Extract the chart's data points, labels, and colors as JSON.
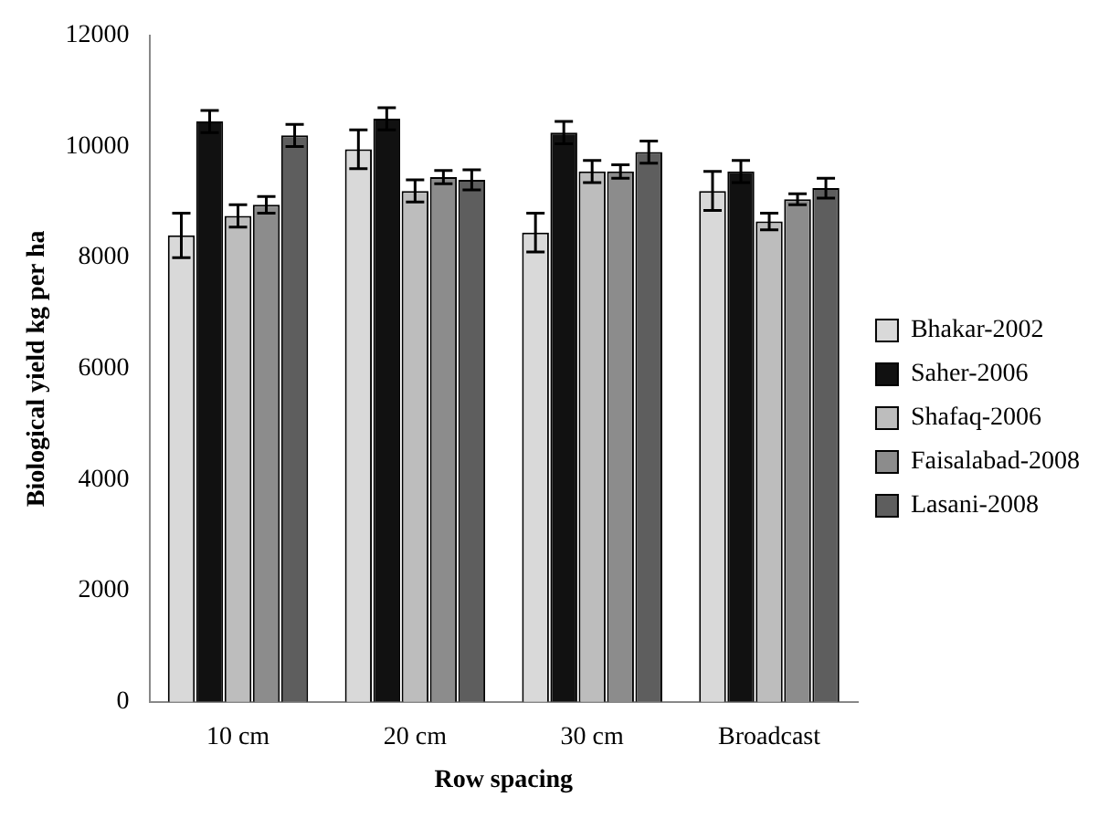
{
  "chart_data": {
    "type": "bar",
    "xlabel": "Row spacing",
    "ylabel": "Biological yield kg per ha",
    "categories": [
      "10 cm",
      "20 cm",
      "30 cm",
      "Broadcast"
    ],
    "series": [
      {
        "name": "Bhakar-2002",
        "color": "#d9d9d9",
        "values": [
          8400,
          9950,
          8450,
          9200
        ],
        "errors": [
          400,
          350,
          350,
          350
        ]
      },
      {
        "name": "Saher-2006",
        "color": "#111111",
        "values": [
          10450,
          10500,
          10250,
          9550
        ],
        "errors": [
          200,
          200,
          200,
          200
        ]
      },
      {
        "name": "Shafaq-2006",
        "color": "#bdbdbd",
        "values": [
          8750,
          9200,
          9550,
          8650
        ],
        "errors": [
          200,
          200,
          200,
          150
        ]
      },
      {
        "name": "Faisalabad-2008",
        "color": "#8c8c8c",
        "values": [
          8950,
          9450,
          9550,
          9050
        ],
        "errors": [
          150,
          120,
          120,
          100
        ]
      },
      {
        "name": "Lasani-2008",
        "color": "#5e5e5e",
        "values": [
          10200,
          9400,
          9900,
          9250
        ],
        "errors": [
          200,
          180,
          200,
          180
        ]
      }
    ],
    "ylim": [
      0,
      12000
    ],
    "yticks": [
      0,
      2000,
      4000,
      6000,
      8000,
      10000,
      12000
    ],
    "grid": false,
    "legend": "right"
  }
}
